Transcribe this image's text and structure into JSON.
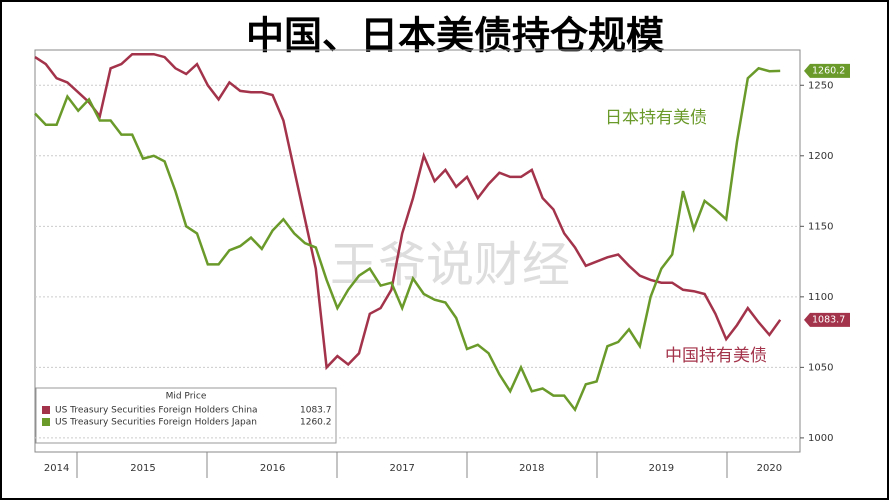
{
  "chart_data": {
    "type": "line",
    "title": "中国、日本美债持仓规模",
    "watermark": "王爷说财经",
    "legend_title": "Mid Price",
    "annotations": [
      "日本持有美债",
      "中国持有美债"
    ],
    "categories": [
      null,
      null,
      "2014",
      null,
      null,
      null,
      null,
      null,
      null,
      null,
      "2015",
      null,
      null,
      null,
      null,
      null,
      null,
      null,
      null,
      null,
      null,
      null,
      "2016",
      null,
      null,
      null,
      null,
      null,
      null,
      null,
      null,
      null,
      null,
      null,
      "2017",
      null,
      null,
      null,
      null,
      null,
      null,
      null,
      null,
      null,
      null,
      null,
      "2018",
      null,
      null,
      null,
      null,
      null,
      null,
      null,
      null,
      null,
      null,
      null,
      "2019",
      null,
      null,
      null,
      null,
      null,
      null,
      null,
      null,
      null,
      "2020",
      null
    ],
    "series": [
      {
        "name": "US Treasury Securities Foreign Holders China",
        "color": "#a3334a",
        "last_label": "1083.7",
        "values": [
          1270,
          1265,
          1255,
          1252,
          1245,
          1238,
          1228,
          1262,
          1265,
          1272,
          1272,
          1272,
          1270,
          1262,
          1258,
          1265,
          1250,
          1240,
          1252,
          1246,
          1245,
          1245,
          1243,
          1225,
          1190,
          1155,
          1120,
          1050,
          1058,
          1052,
          1060,
          1088,
          1092,
          1105,
          1145,
          1170,
          1200,
          1182,
          1190,
          1178,
          1185,
          1170,
          1180,
          1188,
          1185,
          1185,
          1190,
          1170,
          1162,
          1145,
          1135,
          1122,
          1125,
          1128,
          1130,
          1122,
          1115,
          1112,
          1110,
          1110,
          1105,
          1104,
          1102,
          1088,
          1070,
          1080,
          1092,
          1082,
          1073,
          1083.7
        ]
      },
      {
        "name": "US Treasury Securities Foreign Holders Japan",
        "color": "#6a9a2a",
        "last_label": "1260.2",
        "values": [
          1230,
          1222,
          1222,
          1242,
          1232,
          1240,
          1225,
          1225,
          1215,
          1215,
          1198,
          1200,
          1196,
          1175,
          1150,
          1145,
          1123,
          1123,
          1133,
          1136,
          1142,
          1134,
          1147,
          1155,
          1145,
          1138,
          1135,
          1112,
          1092,
          1105,
          1115,
          1120,
          1108,
          1110,
          1092,
          1113,
          1102,
          1098,
          1096,
          1085,
          1063,
          1066,
          1060,
          1045,
          1033,
          1050,
          1033,
          1035,
          1030,
          1030,
          1020,
          1038,
          1040,
          1065,
          1068,
          1077,
          1065,
          1100,
          1120,
          1130,
          1175,
          1148,
          1168,
          1162,
          1155,
          1210,
          1255,
          1262,
          1260,
          1260.2
        ]
      }
    ],
    "ylim": [
      990,
      1275
    ],
    "yticks": [
      1000,
      1050,
      1100,
      1150,
      1200,
      1250
    ],
    "grid": true
  }
}
